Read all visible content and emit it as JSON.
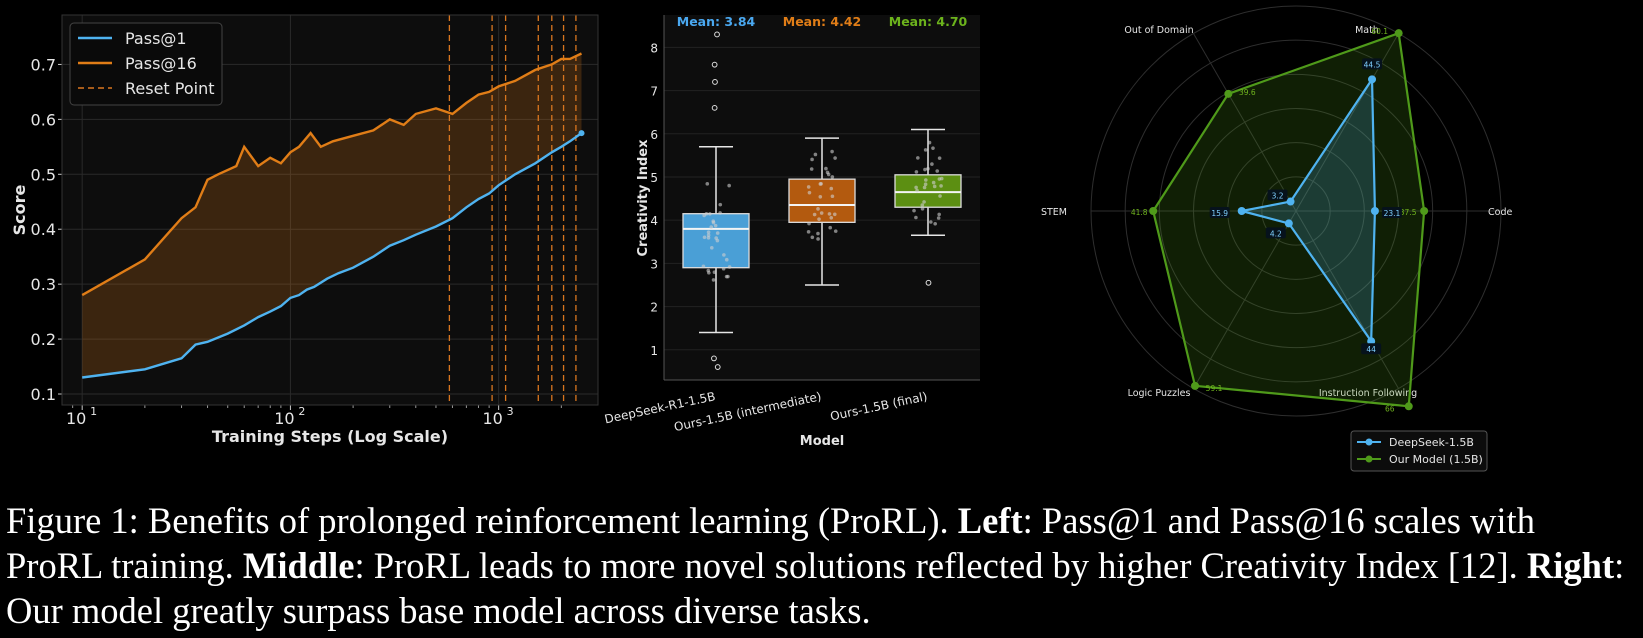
{
  "chart_data": [
    {
      "type": "line",
      "xscale": "log",
      "xlabel": "Training Steps (Log Scale)",
      "ylabel": "Score",
      "xlim": [
        8,
        3000
      ],
      "ylim": [
        0.08,
        0.79
      ],
      "x_ticks": [
        {
          "value": 10,
          "label": "10",
          "exp": "1"
        },
        {
          "value": 100,
          "label": "10",
          "exp": "2"
        },
        {
          "value": 1000,
          "label": "10",
          "exp": "3"
        }
      ],
      "y_ticks": [
        0.1,
        0.2,
        0.3,
        0.4,
        0.5,
        0.6,
        0.7
      ],
      "grid": true,
      "legend_position": "top-left",
      "legend": [
        "Pass@1",
        "Pass@16",
        "Reset Point"
      ],
      "fill_between_series": true,
      "reset_points": [
        580,
        930,
        1080,
        1550,
        1800,
        2050,
        2350
      ],
      "series": [
        {
          "name": "Pass@1",
          "color": "#4fb3f0",
          "x": [
            10,
            20,
            30,
            35,
            40,
            50,
            60,
            70,
            80,
            90,
            100,
            110,
            120,
            130,
            150,
            170,
            200,
            250,
            300,
            350,
            400,
            500,
            600,
            700,
            800,
            900,
            1000,
            1200,
            1500,
            1800,
            2000,
            2200,
            2500
          ],
          "y": [
            0.13,
            0.145,
            0.165,
            0.19,
            0.195,
            0.21,
            0.225,
            0.24,
            0.25,
            0.26,
            0.275,
            0.28,
            0.29,
            0.295,
            0.31,
            0.32,
            0.33,
            0.35,
            0.37,
            0.38,
            0.39,
            0.405,
            0.42,
            0.44,
            0.455,
            0.465,
            0.48,
            0.5,
            0.52,
            0.54,
            0.55,
            0.56,
            0.575
          ]
        },
        {
          "name": "Pass@16",
          "color": "#e07d17",
          "x": [
            10,
            20,
            30,
            35,
            40,
            45,
            55,
            60,
            70,
            80,
            90,
            100,
            110,
            125,
            140,
            160,
            200,
            250,
            300,
            350,
            400,
            500,
            600,
            700,
            800,
            900,
            1000,
            1200,
            1500,
            1800,
            2000,
            2200,
            2500
          ],
          "y": [
            0.28,
            0.345,
            0.42,
            0.44,
            0.49,
            0.5,
            0.515,
            0.55,
            0.515,
            0.53,
            0.52,
            0.54,
            0.55,
            0.575,
            0.55,
            0.56,
            0.57,
            0.58,
            0.6,
            0.59,
            0.61,
            0.62,
            0.61,
            0.63,
            0.645,
            0.65,
            0.66,
            0.67,
            0.69,
            0.7,
            0.71,
            0.71,
            0.72
          ]
        }
      ]
    },
    {
      "type": "box",
      "xlabel": "Model",
      "ylabel": "Creativity Index",
      "ylim": [
        0.3,
        8.75
      ],
      "y_ticks": [
        1,
        2,
        3,
        4,
        5,
        6,
        7,
        8
      ],
      "categories": [
        "DeepSeek-R1-1.5B",
        "Ours-1.5B (intermediate)",
        "Ours-1.5B (final)"
      ],
      "mean_labels": [
        "Mean: 3.84",
        "Mean: 4.42",
        "Mean: 4.70"
      ],
      "boxes": [
        {
          "q1": 2.9,
          "median": 3.8,
          "q3": 4.15,
          "whisker_low": 1.4,
          "whisker_high": 5.7,
          "color": "#4a9fd6",
          "mean_color": "#4aa8f0",
          "outliers": [
            0.6,
            0.8,
            6.6,
            7.2,
            7.6,
            8.3
          ]
        },
        {
          "q1": 3.95,
          "median": 4.35,
          "q3": 4.95,
          "whisker_low": 2.5,
          "whisker_high": 5.9,
          "color": "#b35a0f",
          "mean_color": "#e07d17",
          "outliers": []
        },
        {
          "q1": 4.3,
          "median": 4.65,
          "q3": 5.05,
          "whisker_low": 3.65,
          "whisker_high": 6.1,
          "color": "#5c8f12",
          "mean_color": "#6cb31c",
          "outliers": [
            2.55
          ]
        }
      ]
    },
    {
      "type": "radar",
      "axes": [
        "Math",
        "Code",
        "Instruction Following",
        "Logic Puzzles",
        "STEM",
        "Out of Domain"
      ],
      "rmax": 60,
      "grid": true,
      "legend_position": "bottom-right",
      "series": [
        {
          "name": "DeepSeek-1.5B",
          "color": "#4fb3f0",
          "values": [
            44.5,
            23.1,
            44.0,
            4.2,
            15.9,
            3.2
          ]
        },
        {
          "name": "Our Model (1.5B)",
          "color": "#4f9a1a",
          "values": [
            60.1,
            37.5,
            66.0,
            59.1,
            41.8,
            39.6
          ]
        }
      ]
    }
  ],
  "caption": {
    "figure_label": "Figure 1: Benefits of prolonged reinforcement learning (ProRL).",
    "left_label": "Left",
    "left_text": ": Pass@1 and Pass@16 scales with ProRL training.",
    "middle_label": "Middle",
    "middle_text": ": ProRL leads to more novel solutions reflected by higher Creativity Index [12].",
    "right_label": "Right",
    "right_text": ": Our model greatly surpass base model across diverse tasks."
  }
}
